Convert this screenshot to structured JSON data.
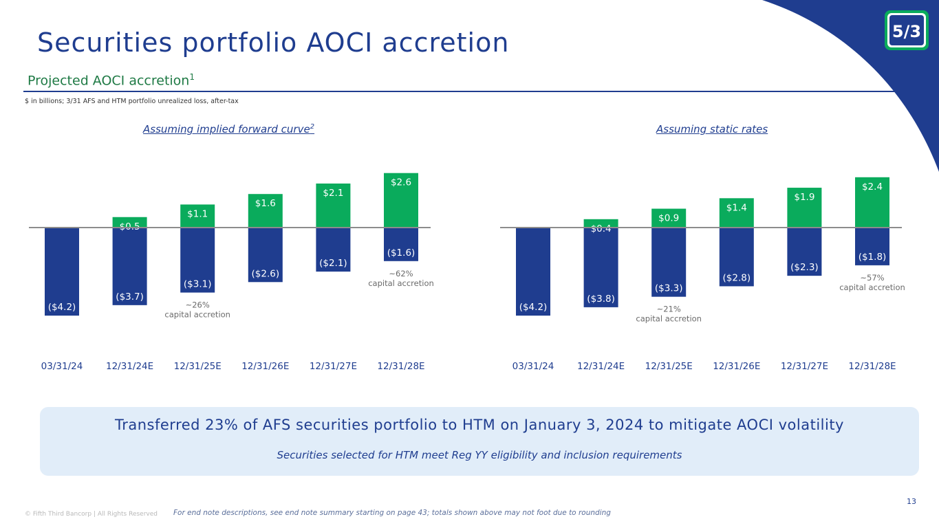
{
  "slide": {
    "title": "Securities portfolio AOCI accretion",
    "subtitle": "Projected AOCI accretion",
    "subtitle_sup": "1",
    "unit_note": "$ in billions; 3/31 AFS and HTM portfolio unrealized loss, after-tax",
    "logo_text": "5/3"
  },
  "colors": {
    "navy": "#1f3d8f",
    "green": "#0aab5c",
    "axis": "#8c8c8c",
    "callout_bg": "#e1edf9"
  },
  "chart_data": [
    {
      "type": "bar",
      "title": "Assuming implied forward curve",
      "title_sup": "2",
      "categories": [
        "03/31/24",
        "12/31/24E",
        "12/31/25E",
        "12/31/26E",
        "12/31/27E",
        "12/31/28E"
      ],
      "series": [
        {
          "name": "Unrealized loss",
          "values": [
            -4.2,
            -3.7,
            -3.1,
            -2.6,
            -2.1,
            -1.6
          ],
          "labels": [
            "($4.2)",
            "($3.7)",
            "($3.1)",
            "($2.6)",
            "($2.1)",
            "($1.6)"
          ]
        },
        {
          "name": "Accretion",
          "values": [
            null,
            0.5,
            1.1,
            1.6,
            2.1,
            2.6
          ],
          "labels": [
            "",
            "$0.5",
            "$1.1",
            "$1.6",
            "$2.1",
            "$2.6"
          ]
        }
      ],
      "annotations": [
        {
          "category_index": 2,
          "lines": [
            "~26%",
            "capital accretion"
          ]
        },
        {
          "category_index": 5,
          "lines": [
            "~62%",
            "capital accretion"
          ]
        }
      ],
      "ylim": [
        -4.5,
        3.0
      ]
    },
    {
      "type": "bar",
      "title": "Assuming static rates",
      "title_sup": "",
      "categories": [
        "03/31/24",
        "12/31/24E",
        "12/31/25E",
        "12/31/26E",
        "12/31/27E",
        "12/31/28E"
      ],
      "series": [
        {
          "name": "Unrealized loss",
          "values": [
            -4.2,
            -3.8,
            -3.3,
            -2.8,
            -2.3,
            -1.8
          ],
          "labels": [
            "($4.2)",
            "($3.8)",
            "($3.3)",
            "($2.8)",
            "($2.3)",
            "($1.8)"
          ]
        },
        {
          "name": "Accretion",
          "values": [
            null,
            0.4,
            0.9,
            1.4,
            1.9,
            2.4
          ],
          "labels": [
            "",
            "$0.4",
            "$0.9",
            "$1.4",
            "$1.9",
            "$2.4"
          ]
        }
      ],
      "annotations": [
        {
          "category_index": 2,
          "lines": [
            "~21%",
            "capital accretion"
          ]
        },
        {
          "category_index": 5,
          "lines": [
            "~57%",
            "capital accretion"
          ]
        }
      ],
      "ylim": [
        -4.5,
        3.0
      ]
    }
  ],
  "callout": {
    "main": "Transferred 23% of AFS securities portfolio to HTM on January 3, 2024 to mitigate AOCI volatility",
    "sub": "Securities selected for HTM meet Reg YY eligibility and inclusion requirements"
  },
  "footer": {
    "copyright": "© Fifth Third Bancorp | All Rights Reserved",
    "footnote": "For end note descriptions, see end note summary starting on page 43; totals shown above may not foot due to rounding",
    "page_number": "13"
  }
}
